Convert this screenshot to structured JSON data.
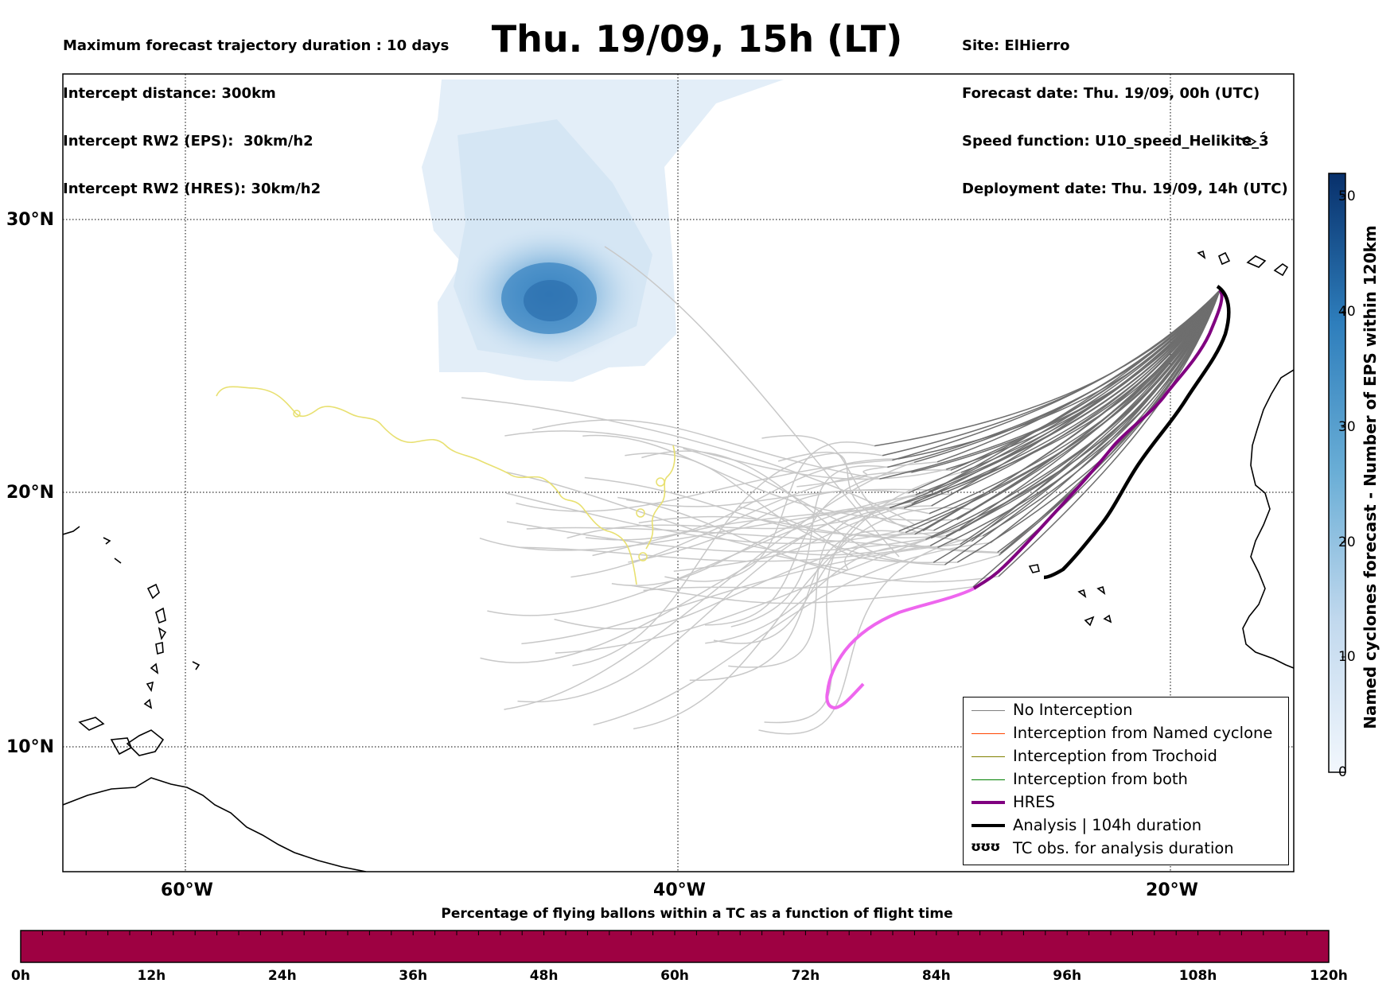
{
  "header_left": [
    "Maximum forecast trajectory duration : 10 days",
    "Intercept distance: 300km",
    "Intercept RW2 (EPS):  30km/h2",
    "Intercept RW2 (HRES): 30km/h2"
  ],
  "title": "Thu. 19/09, 15h (LT)",
  "header_right": [
    "Site: ElHierro",
    "Forecast date: Thu. 19/09, 00h (UTC)",
    "Speed function: U10_speed_Helikite_3",
    "Deployment date: Thu. 19/09, 14h (UTC)"
  ],
  "lat_labels": [
    "30°N",
    "20°N",
    "10°N"
  ],
  "lon_labels": [
    "60°W",
    "40°W",
    "20°W"
  ],
  "colorbar": {
    "title": "Named cyclones forecast - Number of EPS within 120km",
    "ticks": [
      "0",
      "10",
      "20",
      "30",
      "40",
      "50"
    ],
    "min": 0,
    "max": 52,
    "color_low": "#e8f1fa",
    "color_high": "#08306b"
  },
  "legend": {
    "items": [
      {
        "label": "No Interception",
        "color": "#808080",
        "kind": "thin"
      },
      {
        "label": "Interception from Named cyclone",
        "color": "#ff4500",
        "kind": "thin"
      },
      {
        "label": "Interception from Trochoid",
        "color": "#808000",
        "kind": "thin"
      },
      {
        "label": "Interception from both",
        "color": "#008000",
        "kind": "thin"
      },
      {
        "label": "HRES",
        "color": "#800080",
        "kind": "thick"
      },
      {
        "label": "Analysis | 104h duration",
        "color": "#000000",
        "kind": "thick"
      },
      {
        "label": "TC obs. for analysis duration",
        "symbol": "ʊʊʊ",
        "kind": "symbol"
      }
    ]
  },
  "flight_time_bar": {
    "title": "Percentage of flying ballons within a TC as a function of flight time",
    "ticks": [
      "0h",
      "12h",
      "24h",
      "36h",
      "48h",
      "60h",
      "72h",
      "84h",
      "96h",
      "108h",
      "120h"
    ],
    "fill_color": "#9e0142"
  },
  "colors": {
    "trajectories_near": "#6e6e6e",
    "trajectories_far": "#c8c8c8",
    "hres_near": "#800080",
    "hres_far": "#ee66ee",
    "analysis": "#000000",
    "tc_obs": "#e8e070",
    "cyclone_density": "#3c8cc8"
  }
}
